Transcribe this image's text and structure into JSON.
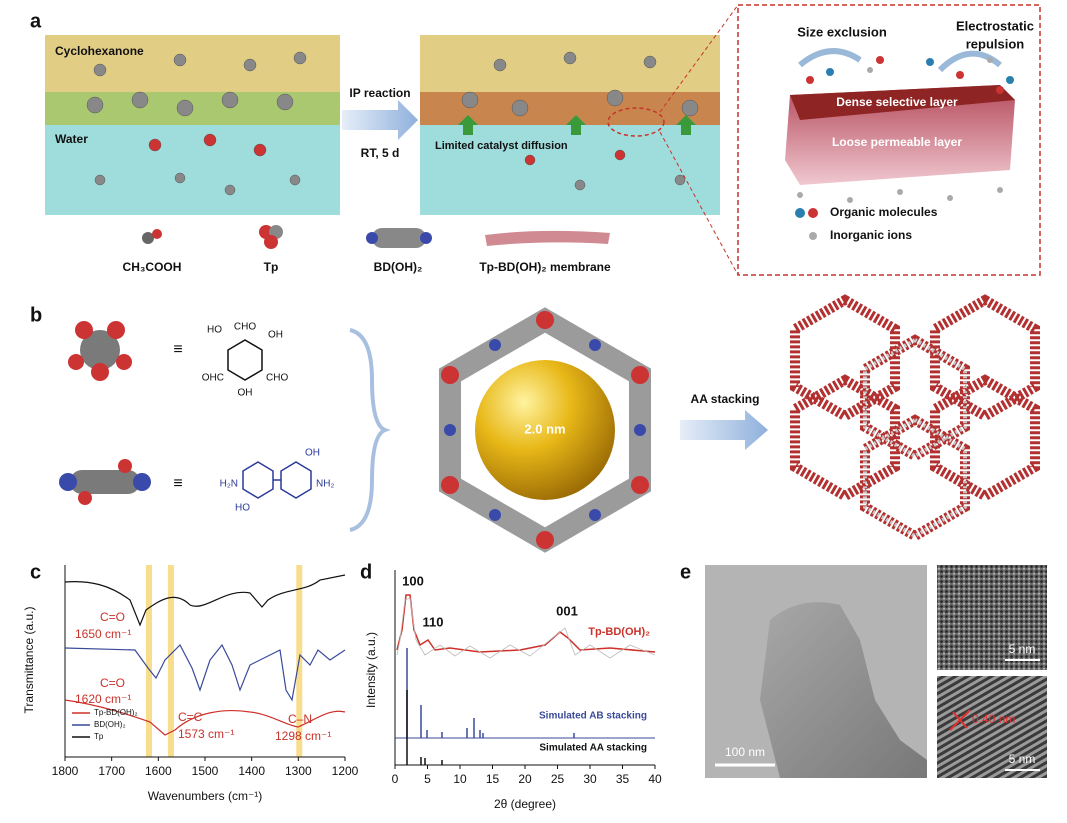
{
  "panels": {
    "a": {
      "letter": "a",
      "top_phase": "Cyclohexanone",
      "bottom_phase": "Water",
      "arrow_top": "IP reaction",
      "arrow_bottom": "RT, 5 d",
      "diffusion": "Limited catalyst diffusion",
      "zoom": {
        "size_exclusion": "Size exclusion",
        "electrostatic": [
          "Electrostatic",
          "repulsion"
        ],
        "dense": "Dense selective layer",
        "loose": "Loose permeable layer",
        "legend": [
          "Organic molecules",
          "Inorganic ions"
        ]
      },
      "labels": [
        "CH₃COOH",
        "Tp",
        "BD(OH)₂",
        "Tp-BD(OH)₂ membrane"
      ]
    },
    "b": {
      "letter": "b",
      "equiv": [
        "≡",
        "≡"
      ],
      "tp_groups": [
        "HO",
        "CHO",
        "OH",
        "OHC",
        "CHO",
        "OH"
      ],
      "bd_groups": [
        "OH",
        "H₂N",
        "NH₂",
        "HO"
      ],
      "pore": "2.0 nm",
      "stacking": "AA stacking"
    },
    "c": {
      "letter": "c",
      "ylabel": "Transmittance (a.u.)",
      "xlabel": "Wavenumbers (cm⁻¹)",
      "xlim": [
        1800,
        1200
      ],
      "xticks": [
        1800,
        1700,
        1600,
        1500,
        1400,
        1300,
        1200
      ],
      "bands": [
        1620,
        1573,
        1298
      ],
      "annotations": [
        [
          "C=O",
          "1650 cm⁻¹"
        ],
        [
          "C=O",
          "1620 cm⁻¹"
        ],
        [
          "C=C",
          "1573 cm⁻¹"
        ],
        [
          "C–N",
          "1298 cm⁻¹"
        ]
      ],
      "legend": [
        {
          "name": "Tp-BD(OH)₂",
          "color": "#d0302a"
        },
        {
          "name": "BD(OH)₂",
          "color": "#3a4a9a"
        },
        {
          "name": "Tp",
          "color": "#111111"
        }
      ]
    },
    "d": {
      "letter": "d",
      "ylabel": "Intensity (a.u.)",
      "xlabel": "2θ (degree)",
      "xlim": [
        0,
        40
      ],
      "xticks": [
        0,
        5,
        10,
        15,
        20,
        25,
        30,
        35,
        40
      ],
      "peaks": [
        "100",
        "110",
        "001"
      ],
      "series": [
        "Tp-BD(OH)₂",
        "Simulated AB stacking",
        "Simulated AA stacking"
      ]
    },
    "e": {
      "letter": "e",
      "scales": [
        "100 nm",
        "5 nm",
        "5 nm"
      ],
      "spacing": "0.40 nm"
    }
  }
}
